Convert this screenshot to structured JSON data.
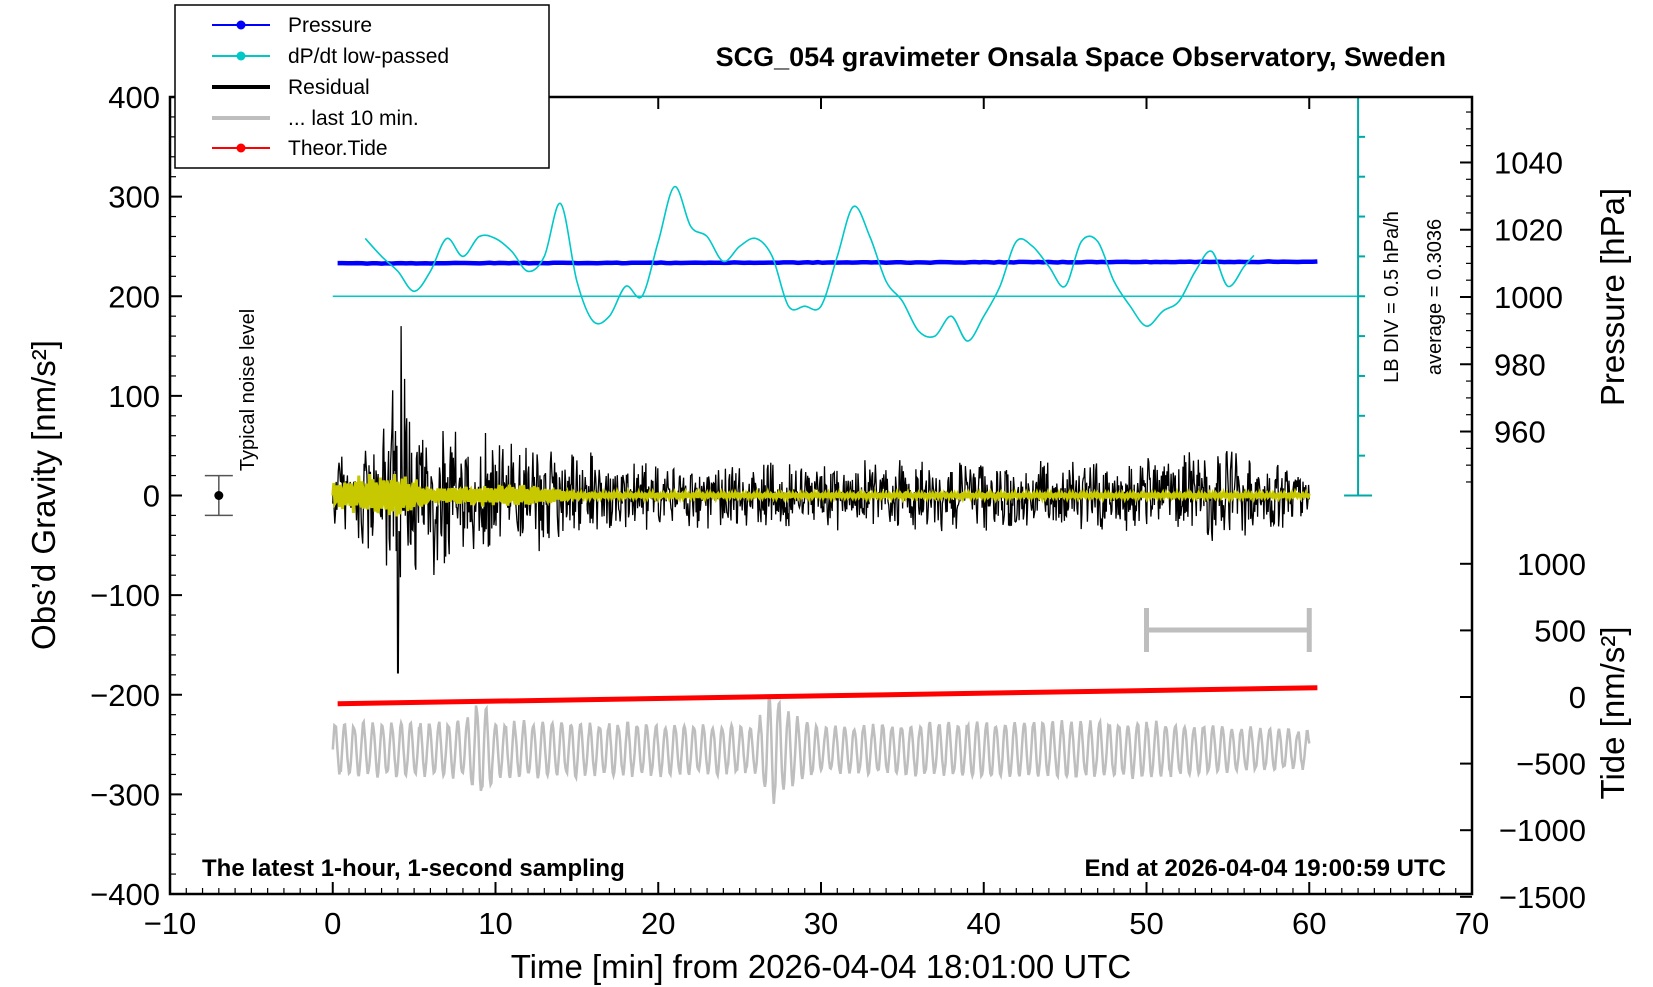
{
  "chart_data": {
    "type": "line",
    "title": "SCG_054 gravimeter Onsala Space Observatory, Sweden",
    "xlabel": "Time [min] from 2026-04-04 18:01:00 UTC",
    "ylabel": "Obs’d Gravity [nm/s²]",
    "ylabel_right_top": "Pressure [hPa]",
    "ylabel_right_bottom": "Tide [nm/s²]",
    "xlim": [
      -10,
      70
    ],
    "ylim": [
      -400,
      400
    ],
    "x_ticks": [
      -10,
      0,
      10,
      20,
      30,
      40,
      50,
      60,
      70
    ],
    "x_tick_labels": [
      "−10",
      "0",
      "10",
      "20",
      "30",
      "40",
      "50",
      "60",
      "70"
    ],
    "y_ticks": [
      -400,
      -300,
      -200,
      -100,
      0,
      100,
      200,
      300,
      400
    ],
    "y_tick_labels": [
      "−400",
      "−300",
      "−200",
      "−100",
      "0",
      "100",
      "200",
      "300",
      "400"
    ],
    "pressure_axis": {
      "range": [
        940,
        1060
      ],
      "ticks": [
        960,
        980,
        1000,
        1020,
        1040
      ],
      "tick_labels": [
        "960",
        "980",
        "1000",
        "1020",
        "1040"
      ]
    },
    "tide_axis": {
      "range": [
        -1500,
        1000
      ],
      "ticks": [
        -1500,
        -1000,
        -500,
        0,
        500,
        1000
      ],
      "tick_labels": [
        "−1500",
        "−1000",
        "−500",
        "0",
        "500",
        "1000"
      ]
    },
    "legend": [
      {
        "label": "Pressure",
        "color": "#0000ff",
        "marker": true
      },
      {
        "label": "dP/dt low-passed",
        "color": "#00c8c8",
        "marker": true
      },
      {
        "label": "Residual",
        "color": "#000000",
        "marker": false
      },
      {
        "label": "... last 10 min.",
        "color": "#bebebe",
        "marker": false
      },
      {
        "label": "Theor.Tide",
        "color": "#ff0000",
        "marker": true
      }
    ],
    "series": [
      {
        "name": "Pressure",
        "color": "#0000ff",
        "axis": "pressure",
        "x": [
          0.3,
          60.5
        ],
        "values": [
          1010,
          1010.5
        ]
      },
      {
        "name": "dP/dt low-passed",
        "color": "#00c8c8",
        "axis": "gravity",
        "baseline": 200,
        "x": [
          2,
          3,
          4,
          5,
          6,
          7,
          8,
          9,
          10,
          11,
          12,
          13,
          14,
          15,
          16,
          17,
          18,
          19,
          20,
          21,
          22,
          23,
          24,
          25,
          26,
          27,
          28,
          29,
          30,
          31,
          32,
          33,
          34,
          35,
          36,
          37,
          38,
          39,
          40,
          41,
          42,
          43,
          44,
          45,
          46,
          47,
          48,
          49,
          50,
          51,
          52,
          53,
          54,
          55,
          56,
          56.6
        ],
        "values": [
          258,
          240,
          225,
          205,
          225,
          258,
          240,
          260,
          258,
          245,
          225,
          240,
          293,
          215,
          175,
          180,
          210,
          200,
          255,
          310,
          270,
          260,
          235,
          250,
          258,
          240,
          190,
          190,
          190,
          240,
          290,
          260,
          215,
          195,
          165,
          160,
          180,
          155,
          180,
          210,
          255,
          250,
          230,
          210,
          255,
          255,
          215,
          190,
          170,
          185,
          195,
          225,
          245,
          210,
          230,
          241
        ]
      },
      {
        "name": "Residual",
        "color": "#000000",
        "axis": "gravity",
        "x_range": [
          0,
          60
        ],
        "envelope_x": [
          0,
          3,
          4,
          5,
          8,
          10,
          12,
          14,
          20,
          30,
          40,
          50,
          54,
          60
        ],
        "envelope_amp": [
          45,
          75,
          170,
          100,
          70,
          80,
          60,
          55,
          35,
          40,
          40,
          40,
          55,
          30
        ],
        "spike_max": 170,
        "spike_min": -178
      },
      {
        "name": "... last 10 min.",
        "color": "#bebebe",
        "axis": "gravity",
        "center": -255,
        "x_range": [
          0,
          60
        ],
        "envelope_x": [
          0,
          8,
          9,
          10,
          20,
          26,
          27,
          28,
          30,
          40,
          50,
          60
        ],
        "envelope_amp": [
          28,
          30,
          55,
          30,
          28,
          25,
          65,
          40,
          25,
          30,
          30,
          20
        ]
      },
      {
        "name": "Theor.Tide",
        "color": "#ff0000",
        "axis": "gravity",
        "x": [
          0.3,
          60.5
        ],
        "values": [
          -209,
          -193
        ]
      },
      {
        "name": "smoothed residual",
        "color": "#c8c800",
        "axis": "gravity",
        "x_range": [
          0,
          60
        ],
        "envelope_x": [
          0,
          4,
          6,
          10,
          13,
          15,
          20,
          60
        ],
        "envelope_amp": [
          15,
          28,
          8,
          12,
          10,
          4,
          3,
          3
        ]
      }
    ],
    "noise_bar": {
      "x": -7,
      "center": 0,
      "halfwidth": 20,
      "label": "Typical noise level"
    },
    "scale_bar": {
      "x_start": 50,
      "x_end": 60,
      "y": -135
    },
    "lb_label": "LB DIV = 0.5 hPa/h",
    "average_label": "average = 0.3036",
    "lb_axis": {
      "x": 63,
      "y_from": 0,
      "y_to": 400,
      "divisions": 10
    },
    "footer_left": "The latest 1-hour, 1-second sampling",
    "footer_right": "End at 2026-04-04 19:00:59 UTC"
  }
}
